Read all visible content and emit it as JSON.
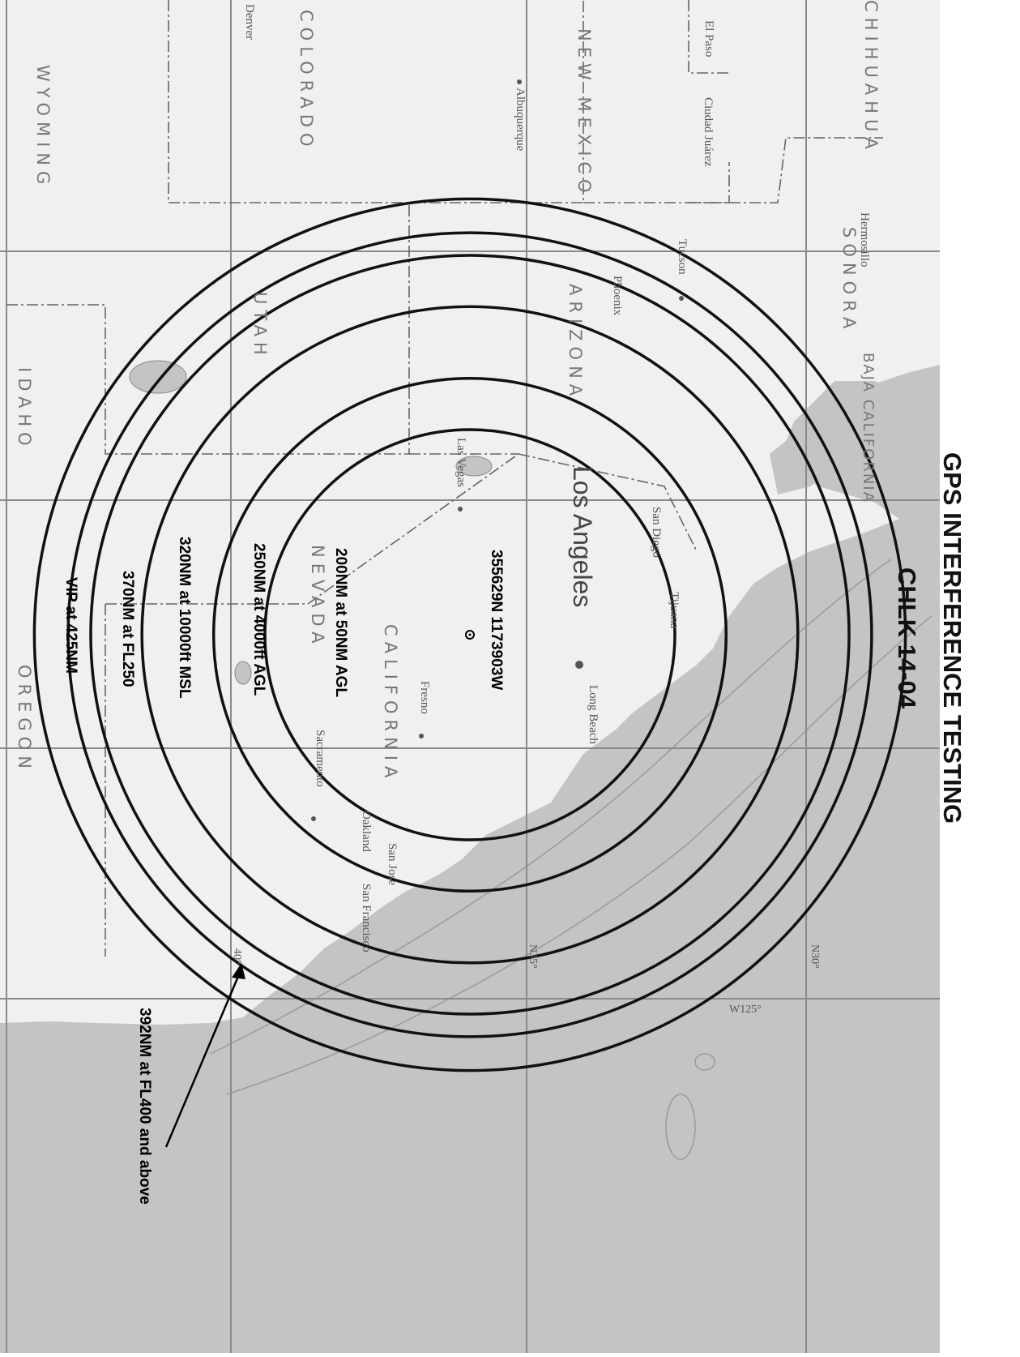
{
  "title": {
    "line1": "CHLK 14-04",
    "line2": "GPS INTERFERENCE TESTING"
  },
  "center_coordinate": "355629N 1173903W",
  "rings": [
    {
      "radius_nm": 200,
      "label": "200NM at 50NM AGL"
    },
    {
      "radius_nm": 250,
      "label": "250NM at 4000ft AGL"
    },
    {
      "radius_nm": 320,
      "label": "320NM at 10000ft MSL"
    },
    {
      "radius_nm": 370,
      "label": "370NM at FL250"
    },
    {
      "radius_nm": 392,
      "label": "392NM at FL400 and above"
    },
    {
      "radius_nm": 425,
      "label": "VIP at 425NM"
    }
  ],
  "states": {
    "wyoming": "WYOMING",
    "colorado": "COLORADO",
    "new_mexico": "NEW MEXICO",
    "chihuahua": "CHIHUAHUA",
    "idaho": "IDAHO",
    "utah": "UTAH",
    "arizona": "ARIZONA",
    "sonora": "SONORA",
    "oregon": "OREGON",
    "nevada": "NEVADA",
    "california": "CALIFORNIA",
    "baja_california": "BAJA CALIFORNIA"
  },
  "cities": {
    "denver": "Denver",
    "albuquerque": "Albuquerque",
    "ciudad_juarez": "Ciudad Juárez",
    "el_paso": "El Paso",
    "tucson": "Tucson",
    "hermosillo": "Hermosillo",
    "phoenix": "Phoenix",
    "las_vegas": "Las Vegas",
    "los_angeles": "Los Angeles",
    "san_diego": "San Diego",
    "tijuana": "Tijuana",
    "long_beach": "Long Beach",
    "fresno": "Fresno",
    "sacramento": "Sacramento",
    "oakland": "Oakland",
    "san_francisco": "San Francisco",
    "san_jose": "San Jose"
  },
  "grid_labels": {
    "n40": "40°",
    "n35": "N35°",
    "n30": "N30°",
    "w125": "W125°"
  },
  "colors": {
    "land": "#f0f0f0",
    "ocean": "#c4c4c4",
    "ocean_deep": "#b4b4b4",
    "rings": "#111111",
    "grid": "#8a8a8a"
  }
}
